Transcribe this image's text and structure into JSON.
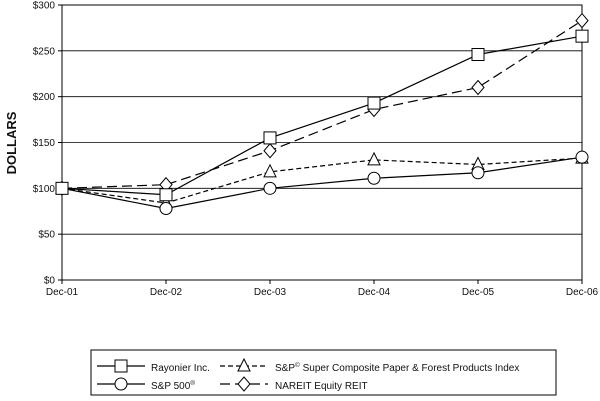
{
  "chart_data": {
    "type": "line",
    "ylabel": "DOLLARS",
    "ylim": [
      0,
      300
    ],
    "y_ticks": [
      "$0",
      "$50",
      "$100",
      "$150",
      "$200",
      "$250",
      "$300"
    ],
    "y_tick_values": [
      0,
      50,
      100,
      150,
      200,
      250,
      300
    ],
    "categories": [
      "Dec-01",
      "Dec-02",
      "Dec-03",
      "Dec-04",
      "Dec-05",
      "Dec-06"
    ],
    "grid": "horizontal",
    "legend_position": "bottom",
    "series": [
      {
        "name": "Rayonier Inc.",
        "marker": "square",
        "dash": "solid",
        "values": [
          100,
          93,
          155,
          193,
          246,
          266
        ]
      },
      {
        "name": "S&P 500",
        "name_sup": "®",
        "marker": "circle",
        "dash": "solid",
        "values": [
          100,
          78,
          100,
          111,
          117,
          134
        ]
      },
      {
        "name": "S&P",
        "name_sup": "©",
        "name_rest": " Super Composite Paper & Forest Products Index",
        "marker": "triangle",
        "dash": "dashed",
        "values": [
          100,
          84,
          118,
          131,
          126,
          133
        ]
      },
      {
        "name": "NAREIT Equity REIT",
        "marker": "diamond",
        "dash": "longdash",
        "values": [
          100,
          104,
          141,
          186,
          210,
          283
        ]
      }
    ]
  }
}
